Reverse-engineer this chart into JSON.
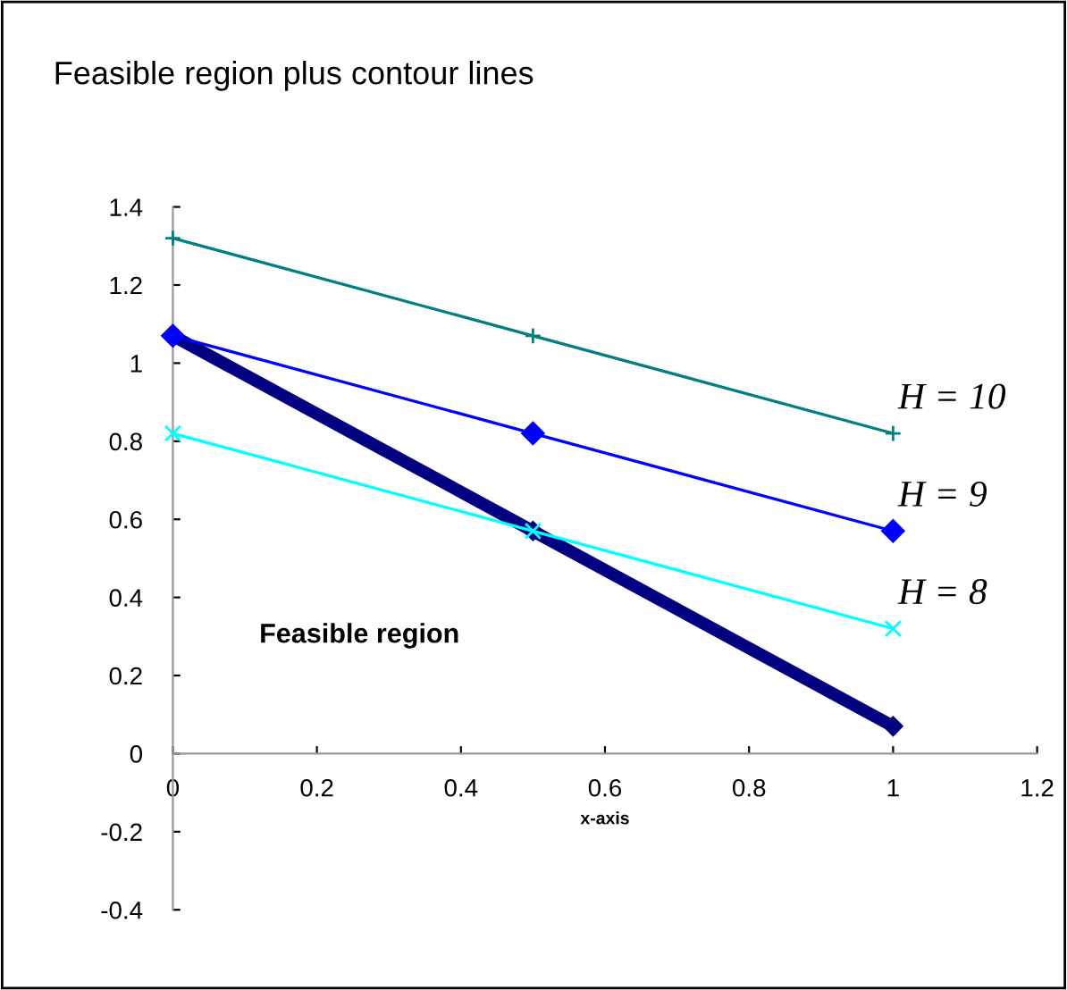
{
  "chart_data": {
    "type": "line",
    "title": "Feasible region plus contour lines",
    "xlabel": "x-axis",
    "x": [
      0,
      0.5,
      1
    ],
    "series": [
      {
        "name": "H = 10",
        "color": "#008080",
        "marker": "plus",
        "values": [
          1.32,
          1.07,
          0.82
        ]
      },
      {
        "name": "H = 9",
        "color": "#0000ff",
        "marker": "diamond",
        "values": [
          1.07,
          0.82,
          0.57
        ]
      },
      {
        "name": "H = 8",
        "color": "#00ffff",
        "marker": "x",
        "values": [
          0.82,
          0.57,
          0.32
        ]
      },
      {
        "color": "#000080",
        "marker": "diamond",
        "values": [
          1.07,
          0.57,
          0.07
        ]
      }
    ],
    "annotations": [
      "Feasible region"
    ],
    "xlim": [
      0,
      1.2
    ],
    "xticks": [
      0,
      0.2,
      0.4,
      0.6,
      0.8,
      1,
      1.2
    ],
    "ylim": [
      -0.4,
      1.4
    ],
    "yticks": [
      -0.4,
      -0.2,
      0,
      0.2,
      0.4,
      0.6,
      0.8,
      1,
      1.2,
      1.4
    ],
    "grid": false,
    "legend": false
  }
}
